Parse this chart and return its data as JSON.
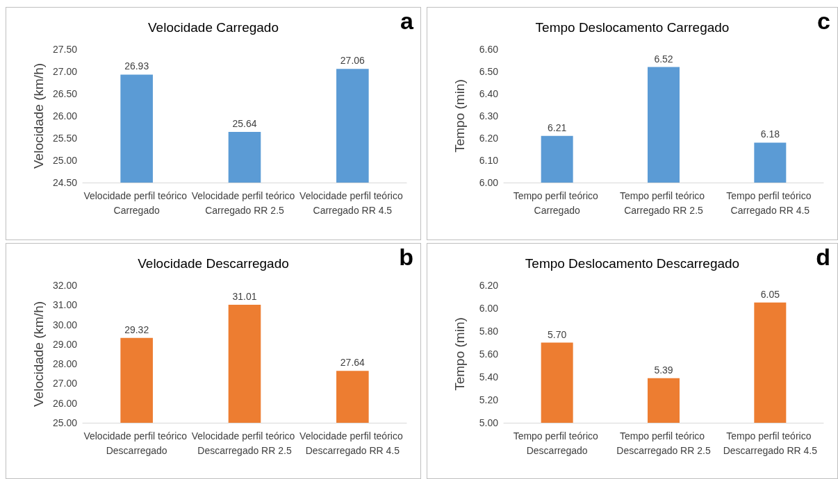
{
  "chart_data": [
    {
      "type": "bar",
      "title": "Velocidade Carregado",
      "ylabel": "Velocidade (km/h)",
      "annotations": [
        "a"
      ],
      "categories": [
        "Velocidade perfil teórico Carregado",
        "Velocidade perfil teórico Carregado RR 2.5",
        "Velocidade perfil teórico Carregado RR 4.5"
      ],
      "values": [
        26.93,
        25.64,
        27.06
      ],
      "value_labels": [
        "26.93",
        "25.64",
        "27.06"
      ],
      "color": "#5b9bd5",
      "ylim": [
        24.5,
        27.5
      ],
      "yticks": [
        {
          "value": 24.5,
          "label": "24.50"
        },
        {
          "value": 25,
          "label": "25.00"
        },
        {
          "value": 25.5,
          "label": "25.50"
        },
        {
          "value": 26,
          "label": "26.00"
        },
        {
          "value": 26.5,
          "label": "26.50"
        },
        {
          "value": 27,
          "label": "27.00"
        },
        {
          "value": 27.5,
          "label": "27.50"
        }
      ],
      "grid": false
    },
    {
      "type": "bar",
      "title": "Tempo Deslocamento Carregado",
      "ylabel": "Tempo (min)",
      "annotations": [
        "c"
      ],
      "categories": [
        "Tempo perfil teórico Carregado",
        "Tempo perfil teórico Carregado RR 2.5",
        "Tempo perfil teórico Carregado RR 4.5"
      ],
      "values": [
        6.21,
        6.52,
        6.18
      ],
      "value_labels": [
        "6.21",
        "6.52",
        "6.18"
      ],
      "color": "#5b9bd5",
      "ylim": [
        6.0,
        6.6
      ],
      "yticks": [
        {
          "value": 6.0,
          "label": "6.00"
        },
        {
          "value": 6.1,
          "label": "6.10"
        },
        {
          "value": 6.2,
          "label": "6.20"
        },
        {
          "value": 6.3,
          "label": "6.30"
        },
        {
          "value": 6.4,
          "label": "6.40"
        },
        {
          "value": 6.5,
          "label": "6.50"
        },
        {
          "value": 6.6,
          "label": "6.60"
        }
      ],
      "grid": false
    },
    {
      "type": "bar",
      "title": "Velocidade Descarregado",
      "ylabel": "Velocidade (km/h)",
      "annotations": [
        "b"
      ],
      "categories": [
        "Velocidade perfil teórico Descarregado",
        "Velocidade perfil teórico Descarregado RR 2.5",
        "Velocidade perfil teórico Descarregado RR 4.5"
      ],
      "values": [
        29.32,
        31.01,
        27.64
      ],
      "value_labels": [
        "29.32",
        "31.01",
        "27.64"
      ],
      "color": "#ed7d31",
      "ylim": [
        25,
        32
      ],
      "yticks": [
        {
          "value": 25,
          "label": "25.00"
        },
        {
          "value": 26,
          "label": "26.00"
        },
        {
          "value": 27,
          "label": "27.00"
        },
        {
          "value": 28,
          "label": "28.00"
        },
        {
          "value": 29,
          "label": "29.00"
        },
        {
          "value": 30,
          "label": "30.00"
        },
        {
          "value": 31,
          "label": "31.00"
        },
        {
          "value": 32,
          "label": "32.00"
        }
      ],
      "grid": false
    },
    {
      "type": "bar",
      "title": "Tempo Deslocamento Descarregado",
      "ylabel": "Tempo (min)",
      "annotations": [
        "d"
      ],
      "categories": [
        "Tempo perfil teórico Descarregado",
        "Tempo perfil teórico Descarregado RR 2.5",
        "Tempo perfil teórico Descarregado RR 4.5"
      ],
      "values": [
        5.7,
        5.39,
        6.05
      ],
      "value_labels": [
        "5.70",
        "5.39",
        "6.05"
      ],
      "color": "#ed7d31",
      "ylim": [
        5.0,
        6.2
      ],
      "yticks": [
        {
          "value": 5.0,
          "label": "5.00"
        },
        {
          "value": 5.2,
          "label": "5.20"
        },
        {
          "value": 5.4,
          "label": "5.40"
        },
        {
          "value": 5.6,
          "label": "5.60"
        },
        {
          "value": 5.8,
          "label": "5.80"
        },
        {
          "value": 6.0,
          "label": "6.00"
        },
        {
          "value": 6.2,
          "label": "6.20"
        }
      ],
      "grid": false
    }
  ]
}
